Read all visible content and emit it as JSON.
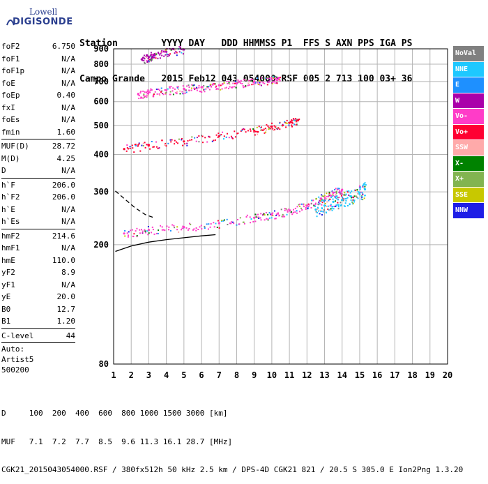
{
  "logo": {
    "line1": "Lowell",
    "line2": "DIGISONDE"
  },
  "header": {
    "row1": "Station        YYYY DAY   DDD HHMMSS P1  FFS S AXN PPS IGA PS",
    "row2": "Campo Grande   2015 Feb12 043 054000 RSF 005 2 713 100 03+ 36"
  },
  "params_group1": [
    {
      "name": "foF2",
      "value": "6.750"
    },
    {
      "name": "foF1",
      "value": "N/A"
    },
    {
      "name": "foF1p",
      "value": "N/A"
    },
    {
      "name": "foE",
      "value": "N/A"
    },
    {
      "name": "foEp",
      "value": "0.40"
    },
    {
      "name": "fxI",
      "value": "N/A"
    },
    {
      "name": "foEs",
      "value": "N/A"
    },
    {
      "name": "fmin",
      "value": "1.60"
    }
  ],
  "params_group2": [
    {
      "name": "MUF(D)",
      "value": "28.72"
    },
    {
      "name": "M(D)",
      "value": "4.25"
    },
    {
      "name": "D",
      "value": "N/A"
    }
  ],
  "params_group3": [
    {
      "name": "h`F",
      "value": "206.0"
    },
    {
      "name": "h`F2",
      "value": "206.0"
    },
    {
      "name": "h`E",
      "value": "N/A"
    },
    {
      "name": "h`Es",
      "value": "N/A"
    }
  ],
  "params_group4": [
    {
      "name": "hmF2",
      "value": "214.6"
    },
    {
      "name": "hmF1",
      "value": "N/A"
    },
    {
      "name": "hmE",
      "value": "110.0"
    },
    {
      "name": "yF2",
      "value": "8.9"
    },
    {
      "name": "yF1",
      "value": "N/A"
    },
    {
      "name": "yE",
      "value": "20.0"
    },
    {
      "name": "B0",
      "value": "12.7"
    },
    {
      "name": "B1",
      "value": "1.20"
    }
  ],
  "params_group5": [
    {
      "name": "C-level",
      "value": "44"
    }
  ],
  "autoscaling": {
    "line1": "Auto:",
    "line2": "Artist5",
    "line3": "500200"
  },
  "legend": [
    {
      "label": "NoVal",
      "color": "#808080"
    },
    {
      "label": "NNE",
      "color": "#1ec8ff"
    },
    {
      "label": "E",
      "color": "#1e90ff"
    },
    {
      "label": "W",
      "color": "#aa00aa"
    },
    {
      "label": "Vo-",
      "color": "#ff3cc8"
    },
    {
      "label": "Vo+",
      "color": "#ff0032"
    },
    {
      "label": "SSW",
      "color": "#ffaaaa"
    },
    {
      "label": "X-",
      "color": "#008200"
    },
    {
      "label": "X+",
      "color": "#82b450"
    },
    {
      "label": "SSE",
      "color": "#c8c800"
    },
    {
      "label": "NNW",
      "color": "#1e1ee6"
    }
  ],
  "footer": {
    "line1": "D     100  200  400  600  800 1000 1500 3000 [km]",
    "line2": "MUF   7.1  7.2  7.7  8.5  9.6 11.3 16.1 28.7 [MHz]",
    "line3": "CGK21_2015043054000.RSF / 380fx512h 50 kHz 2.5 km / DPS-4D CGK21 821 / 20.5 S 305.0 E Ion2Png 1.3.20"
  },
  "chart_data": {
    "type": "scatter",
    "title": "",
    "xlabel": "",
    "ylabel": "",
    "xlim": [
      1,
      20
    ],
    "ylim": [
      80,
      900
    ],
    "y_scale": "log",
    "x_ticks": [
      1,
      2,
      3,
      4,
      5,
      6,
      7,
      8,
      9,
      10,
      11,
      12,
      13,
      14,
      15,
      16,
      17,
      18,
      19,
      20
    ],
    "y_ticks": [
      80,
      200,
      300,
      400,
      500,
      600,
      700,
      800,
      900
    ],
    "grid": true,
    "series": [
      {
        "name": "Vo-",
        "color": "#ff3cc8",
        "trace": "first-hop F trace",
        "x": [
          1.6,
          3,
          5,
          7,
          9,
          10,
          11,
          12,
          12.8,
          13.5,
          14
        ],
        "y": [
          218,
          224,
          229,
          236,
          246,
          252,
          260,
          270,
          285,
          298,
          305
        ]
      },
      {
        "name": "NNE",
        "color": "#1ec8ff",
        "trace": "extraordinary spread",
        "x": [
          12.5,
          13,
          13.5,
          14,
          14.5,
          15,
          15.3
        ],
        "y": [
          262,
          270,
          278,
          282,
          290,
          298,
          306
        ]
      },
      {
        "name": "Vo+",
        "color": "#ff0032",
        "trace": "second-hop F trace",
        "x": [
          1.6,
          3,
          5,
          7,
          9,
          10,
          11,
          11.5
        ],
        "y": [
          417,
          430,
          442,
          460,
          480,
          495,
          510,
          520
        ]
      },
      {
        "name": "Vo-",
        "color": "#ff3cc8",
        "trace": "third-hop F trace",
        "x": [
          2.4,
          3,
          4,
          5,
          6,
          7,
          8,
          9,
          10,
          10.4
        ],
        "y": [
          635,
          645,
          655,
          662,
          670,
          680,
          690,
          700,
          712,
          720
        ]
      },
      {
        "name": "W",
        "color": "#aa00aa",
        "trace": "fourth-hop F trace",
        "x": [
          2.6,
          3,
          3.3,
          4,
          5
        ],
        "y": [
          830,
          845,
          860,
          880,
          895
        ]
      }
    ],
    "model_curves": [
      {
        "style": "solid",
        "x": [
          1.1,
          2,
          3,
          4,
          5,
          6,
          6.8
        ],
        "y": [
          190,
          198,
          204,
          208,
          211,
          214,
          216
        ]
      },
      {
        "style": "dashed",
        "x": [
          1.1,
          1.6,
          2.2,
          2.8,
          3.3
        ],
        "y": [
          302,
          285,
          266,
          252,
          246
        ]
      }
    ]
  }
}
